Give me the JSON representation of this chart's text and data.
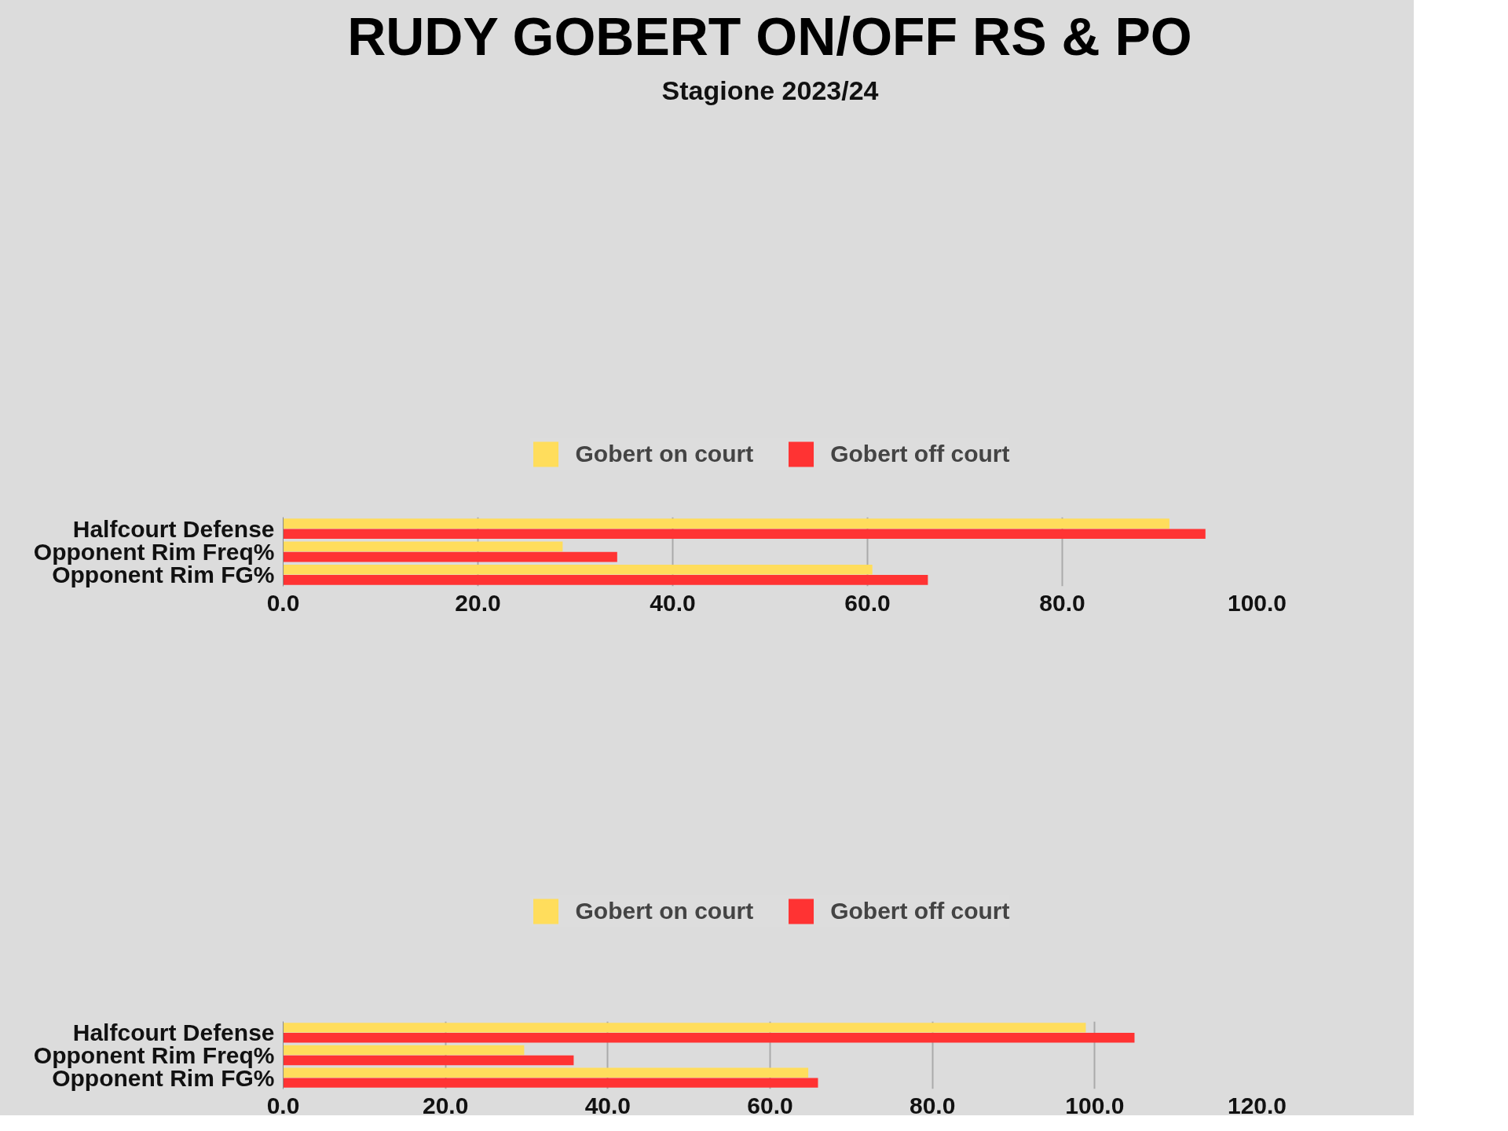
{
  "chart_data": [
    {
      "type": "bar",
      "orientation": "horizontal",
      "title": "RUDY GOBERT ON/OFF RS & PO",
      "subtitle": "Stagione 2023/24",
      "categories": [
        "Halfcourt Defense",
        "Opponent Rim Freq%",
        "Opponent Rim FG%"
      ],
      "series": [
        {
          "name": "Gobert on court",
          "color": "#ffdd5c",
          "values": [
            91.0,
            28.7,
            60.5
          ]
        },
        {
          "name": "Gobert off court",
          "color": "#ff3333",
          "values": [
            94.7,
            34.3,
            66.2
          ]
        }
      ],
      "xlim": [
        0,
        100
      ],
      "xticks": [
        {
          "value": 0,
          "label": "0.0"
        },
        {
          "value": 20,
          "label": "20.0"
        },
        {
          "value": 40,
          "label": "40.0"
        },
        {
          "value": 60,
          "label": "60.0"
        },
        {
          "value": 80,
          "label": "80.0"
        },
        {
          "value": 100,
          "label": "100.0"
        }
      ],
      "grid": "x",
      "legend": "top"
    },
    {
      "type": "bar",
      "orientation": "horizontal",
      "categories": [
        "Halfcourt Defense",
        "Opponent Rim Freq%",
        "Opponent Rim FG%"
      ],
      "series": [
        {
          "name": "Gobert on court",
          "color": "#ffdd5c",
          "values": [
            98.9,
            29.7,
            64.7
          ]
        },
        {
          "name": "Gobert off court",
          "color": "#ff3333",
          "values": [
            104.9,
            35.8,
            65.9
          ]
        }
      ],
      "xlim": [
        0,
        120
      ],
      "xticks": [
        {
          "value": 0,
          "label": "0.0"
        },
        {
          "value": 20,
          "label": "20.0"
        },
        {
          "value": 40,
          "label": "40.0"
        },
        {
          "value": 60,
          "label": "60.0"
        },
        {
          "value": 80,
          "label": "80.0"
        },
        {
          "value": 100,
          "label": "100.0"
        },
        {
          "value": 120,
          "label": "120.0"
        }
      ],
      "grid": "x",
      "legend": "top"
    }
  ]
}
